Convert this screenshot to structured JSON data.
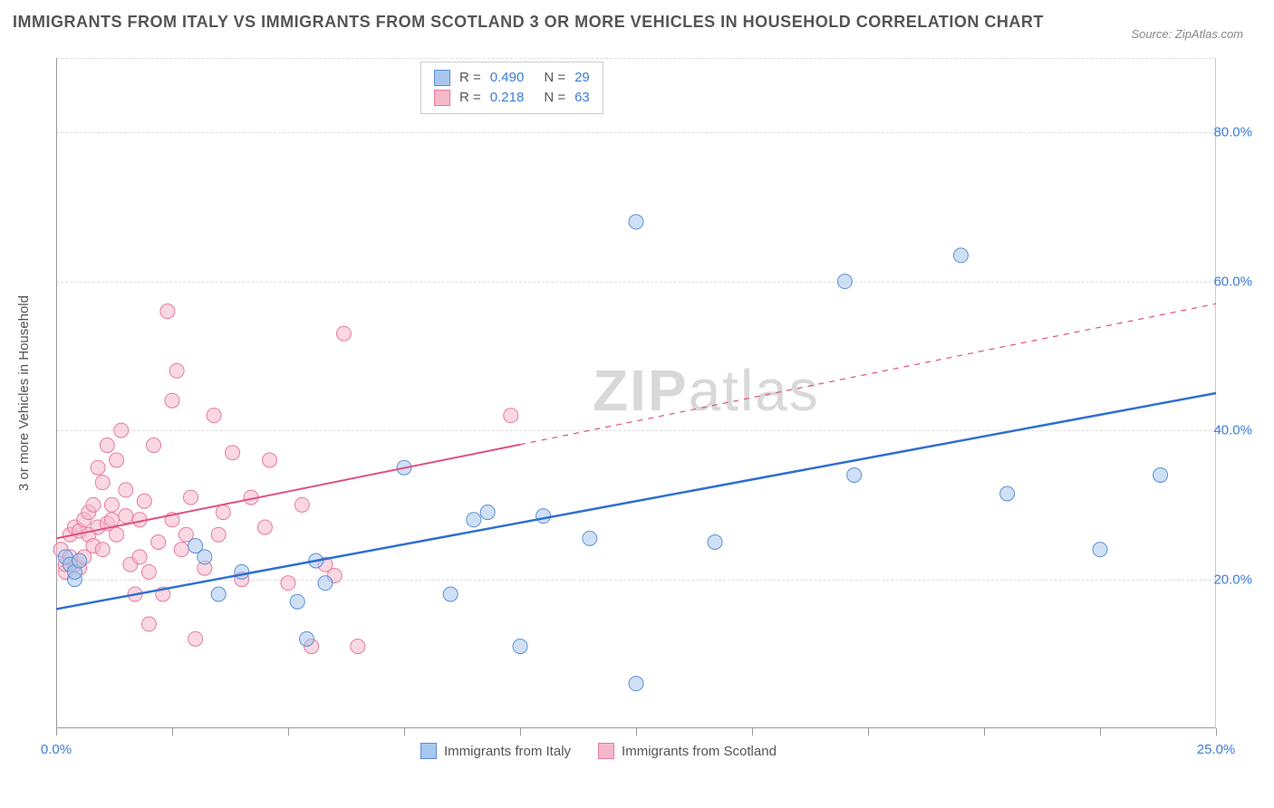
{
  "title": "IMMIGRANTS FROM ITALY VS IMMIGRANTS FROM SCOTLAND 3 OR MORE VEHICLES IN HOUSEHOLD CORRELATION CHART",
  "source": "Source: ZipAtlas.com",
  "watermark_left": "ZIP",
  "watermark_right": "atlas",
  "y_axis_label": "3 or more Vehicles in Household",
  "chart": {
    "type": "scatter",
    "xlim": [
      0,
      25
    ],
    "ylim": [
      0,
      90
    ],
    "x_ticks": [
      0,
      25
    ],
    "x_tick_labels": [
      "0.0%",
      "25.0%"
    ],
    "x_minor_ticks": [
      2.5,
      5,
      7.5,
      10,
      12.5,
      15,
      17.5,
      20,
      22.5
    ],
    "y_gridlines": [
      20,
      40,
      60,
      80
    ],
    "y_tick_labels": [
      "20.0%",
      "40.0%",
      "60.0%",
      "80.0%"
    ],
    "background_color": "#ffffff",
    "grid_color": "#dddddd",
    "series": [
      {
        "name": "Immigrants from Italy",
        "color_fill": "#a7c7ed",
        "color_stroke": "#5b8fd6",
        "fill_opacity": 0.55,
        "marker_radius": 8,
        "r": "0.490",
        "n": "29",
        "trend": {
          "x1": 0,
          "y1": 16,
          "x2": 25,
          "y2": 45,
          "color": "#2f6fd0",
          "width": 2.5,
          "dash_from_x": 25
        },
        "points": [
          [
            0.2,
            23
          ],
          [
            0.3,
            22
          ],
          [
            0.4,
            20
          ],
          [
            0.4,
            21
          ],
          [
            0.5,
            22.5
          ],
          [
            3.0,
            24.5
          ],
          [
            3.2,
            23
          ],
          [
            3.5,
            18
          ],
          [
            4.0,
            21
          ],
          [
            5.2,
            17
          ],
          [
            5.4,
            12
          ],
          [
            5.6,
            22.5
          ],
          [
            5.8,
            19.5
          ],
          [
            7.5,
            35
          ],
          [
            8.5,
            18
          ],
          [
            9.0,
            28
          ],
          [
            9.3,
            29
          ],
          [
            10.0,
            11
          ],
          [
            10.5,
            28.5
          ],
          [
            11.5,
            25.5
          ],
          [
            12.5,
            6
          ],
          [
            12.5,
            68
          ],
          [
            14.2,
            25
          ],
          [
            17.0,
            60
          ],
          [
            17.2,
            34
          ],
          [
            19.5,
            63.5
          ],
          [
            20.5,
            31.5
          ],
          [
            22.5,
            24
          ],
          [
            23.8,
            34
          ]
        ]
      },
      {
        "name": "Immigrants from Scotland",
        "color_fill": "#f5b8c9",
        "color_stroke": "#e77aa0",
        "fill_opacity": 0.55,
        "marker_radius": 8,
        "r": "0.218",
        "n": "63",
        "trend": {
          "x1": 0,
          "y1": 25.5,
          "x2": 25,
          "y2": 57,
          "color": "#e05080",
          "width": 2,
          "dash_from_x": 10
        },
        "points": [
          [
            0.1,
            24
          ],
          [
            0.2,
            21
          ],
          [
            0.2,
            22
          ],
          [
            0.3,
            23
          ],
          [
            0.3,
            26
          ],
          [
            0.4,
            27
          ],
          [
            0.4,
            22
          ],
          [
            0.5,
            21.5
          ],
          [
            0.5,
            26.5
          ],
          [
            0.6,
            23
          ],
          [
            0.6,
            28
          ],
          [
            0.7,
            26
          ],
          [
            0.7,
            29
          ],
          [
            0.8,
            30
          ],
          [
            0.8,
            24.5
          ],
          [
            0.9,
            27
          ],
          [
            0.9,
            35
          ],
          [
            1.0,
            33
          ],
          [
            1.0,
            24
          ],
          [
            1.1,
            27.5
          ],
          [
            1.1,
            38
          ],
          [
            1.2,
            28
          ],
          [
            1.2,
            30
          ],
          [
            1.3,
            36
          ],
          [
            1.3,
            26
          ],
          [
            1.4,
            40
          ],
          [
            1.5,
            28.5
          ],
          [
            1.5,
            32
          ],
          [
            1.6,
            22
          ],
          [
            1.7,
            18
          ],
          [
            1.8,
            28
          ],
          [
            1.8,
            23
          ],
          [
            1.9,
            30.5
          ],
          [
            2.0,
            21
          ],
          [
            2.0,
            14
          ],
          [
            2.1,
            38
          ],
          [
            2.2,
            25
          ],
          [
            2.3,
            18
          ],
          [
            2.4,
            56
          ],
          [
            2.5,
            44
          ],
          [
            2.5,
            28
          ],
          [
            2.6,
            48
          ],
          [
            2.7,
            24
          ],
          [
            2.8,
            26
          ],
          [
            2.9,
            31
          ],
          [
            3.0,
            12
          ],
          [
            3.2,
            21.5
          ],
          [
            3.4,
            42
          ],
          [
            3.5,
            26
          ],
          [
            3.6,
            29
          ],
          [
            3.8,
            37
          ],
          [
            4.0,
            20
          ],
          [
            4.2,
            31
          ],
          [
            4.5,
            27
          ],
          [
            4.6,
            36
          ],
          [
            5.0,
            19.5
          ],
          [
            5.5,
            11
          ],
          [
            5.8,
            22
          ],
          [
            6.0,
            20.5
          ],
          [
            6.2,
            53
          ],
          [
            6.5,
            11
          ],
          [
            9.8,
            42
          ],
          [
            5.3,
            30
          ]
        ]
      }
    ]
  },
  "legend_bottom": [
    {
      "label": "Immigrants from Italy",
      "fill": "#a7c7ed",
      "stroke": "#5b8fd6"
    },
    {
      "label": "Immigrants from Scotland",
      "fill": "#f5b8c9",
      "stroke": "#e77aa0"
    }
  ]
}
